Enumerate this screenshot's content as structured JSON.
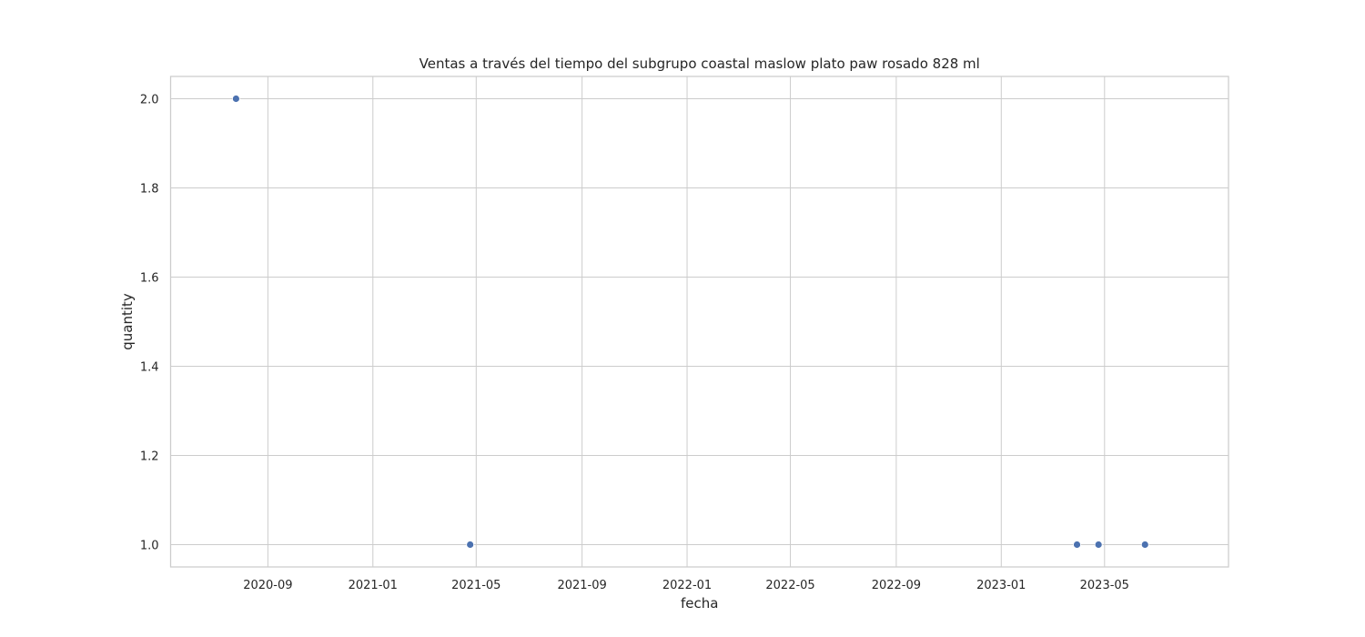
{
  "chart_data": {
    "type": "scatter",
    "title": "Ventas a través del tiempo del subgrupo coastal maslow  plato paw rosado 828 ml",
    "xlabel": "fecha",
    "ylabel": "quantity",
    "x_type": "date",
    "xlim": [
      "2020-05-11",
      "2023-09-22"
    ],
    "ylim": [
      0.95,
      2.05
    ],
    "x_ticks": [
      "2020-09-01",
      "2021-01-01",
      "2021-05-01",
      "2021-09-01",
      "2022-01-01",
      "2022-05-01",
      "2022-09-01",
      "2023-01-01",
      "2023-05-01"
    ],
    "x_tick_labels": [
      "2020-09",
      "2021-01",
      "2021-05",
      "2021-09",
      "2022-01",
      "2022-05",
      "2022-09",
      "2023-01",
      "2023-05"
    ],
    "y_ticks": [
      1.0,
      1.2,
      1.4,
      1.6,
      1.8,
      2.0
    ],
    "y_tick_labels": [
      "1.0",
      "1.2",
      "1.4",
      "1.6",
      "1.8",
      "2.0"
    ],
    "grid": true,
    "point_color": "#4c72b0",
    "series": [
      {
        "x": [
          "2020-07-26",
          "2021-04-24",
          "2023-03-30",
          "2023-04-24",
          "2023-06-17"
        ],
        "y": [
          2,
          1,
          1,
          1,
          1
        ]
      }
    ]
  }
}
